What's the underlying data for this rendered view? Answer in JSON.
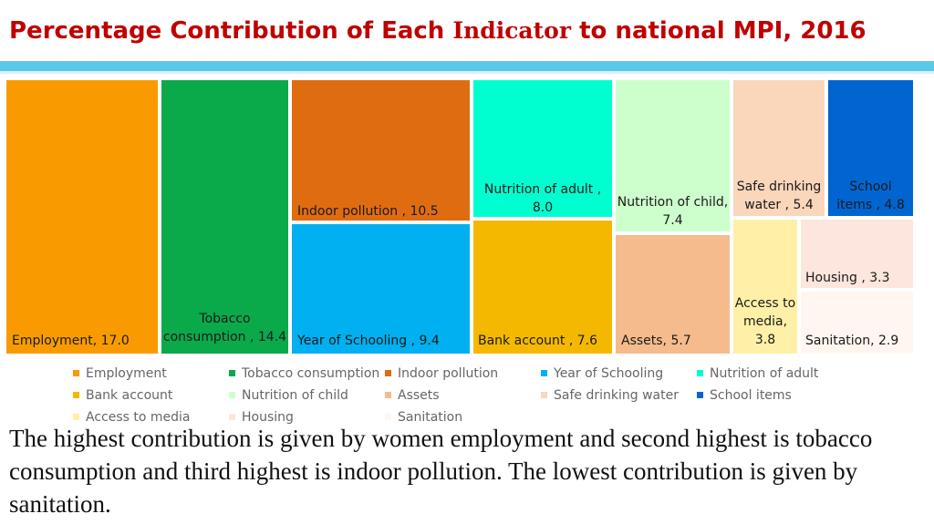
{
  "page": {
    "title_part1": "Percentage Contribution of Each",
    "title_part2": "Indicator",
    "title_part3": "to national MPI, 2016",
    "body_text": "The highest contribution is given by women employment and second highest is tobacco consumption and third highest is indoor pollution. The lowest contribution is given by sanitation."
  },
  "chart_data": {
    "type": "treemap",
    "title": "",
    "series": [
      {
        "name": "Employment",
        "value": 17.0,
        "label": "Employment, 17.0",
        "color": "#f99b00"
      },
      {
        "name": "Tobacco consumption",
        "value": 14.4,
        "label": "Tobacco consumption , 14.4",
        "color": "#0aa94a"
      },
      {
        "name": "Indoor pollution",
        "value": 10.5,
        "label": "Indoor pollution , 10.5",
        "color": "#e06c11"
      },
      {
        "name": "Year of Schooling",
        "value": 9.4,
        "label": "Year of Schooling , 9.4",
        "color": "#00b0f0"
      },
      {
        "name": "Nutrition of adult",
        "value": 8.0,
        "label": "Nutrition of adult , 8.0",
        "color": "#00ffd0"
      },
      {
        "name": "Bank account",
        "value": 7.6,
        "label": "Bank account , 7.6",
        "color": "#f5b800"
      },
      {
        "name": "Nutrition of child",
        "value": 7.4,
        "label": "Nutrition of child, 7.4",
        "color": "#ccffcc"
      },
      {
        "name": "Assets",
        "value": 5.7,
        "label": "Assets, 5.7",
        "color": "#f6bb8c"
      },
      {
        "name": "Safe drinking water",
        "value": 5.4,
        "label": "Safe drinking water , 5.4",
        "color": "#fad6bb"
      },
      {
        "name": "School items",
        "value": 4.8,
        "label": "School items , 4.8",
        "color": "#0065d1"
      },
      {
        "name": "Access to media",
        "value": 3.8,
        "label": "Access to media, 3.8",
        "color": "#fff0a8"
      },
      {
        "name": "Housing",
        "value": 3.3,
        "label": "Housing , 3.3",
        "color": "#fde6dd"
      },
      {
        "name": "Sanitation",
        "value": 2.9,
        "label": "Sanitation, 2.9",
        "color": "#fff6ef"
      }
    ],
    "legend_position": "bottom"
  }
}
